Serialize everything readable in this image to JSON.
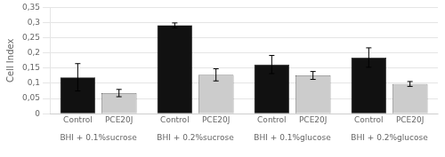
{
  "chart_data": {
    "type": "bar",
    "ylabel": "Cell Index",
    "categories": [
      "BHI + 0.1%sucrose",
      "BHI + 0.2%sucrose",
      "BHI + 0.1%glucose",
      "BHI + 0.2%glucose"
    ],
    "series": [
      {
        "name": "Control",
        "color": "#111111",
        "values": [
          0.12,
          0.291,
          0.162,
          0.185
        ],
        "errors": [
          0.045,
          0.008,
          0.03,
          0.032
        ]
      },
      {
        "name": "PCE20J",
        "color": "#cccccc",
        "values": [
          0.068,
          0.128,
          0.126,
          0.098
        ],
        "errors": [
          0.012,
          0.02,
          0.013,
          0.008
        ]
      }
    ],
    "ylim": [
      0,
      0.35
    ],
    "yticks": [
      0,
      {
        "value": 0.05,
        "label": "0,05"
      },
      {
        "value": 0.1,
        "label": "0,1"
      },
      {
        "value": 0.15,
        "label": "0,15"
      },
      {
        "value": 0.2,
        "label": "0,2"
      },
      {
        "value": 0.25,
        "label": "0,25"
      },
      {
        "value": 0.3,
        "label": "0,3"
      },
      {
        "value": 0.35,
        "label": "0,35"
      }
    ],
    "grid": true
  }
}
